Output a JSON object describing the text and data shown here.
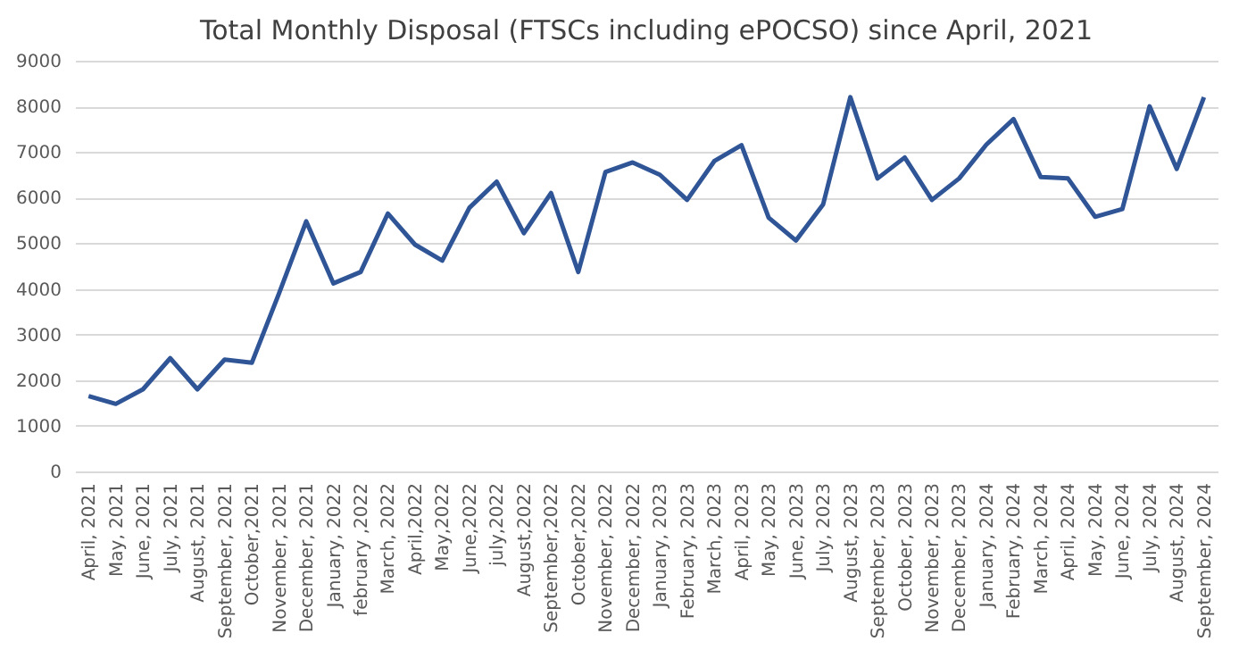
{
  "chart_data": {
    "type": "line",
    "title": "Total Monthly Disposal (FTSCs including ePOCSO) since April, 2021",
    "categories": [
      "April, 2021",
      "May, 2021",
      "June, 2021",
      "July, 2021",
      "August, 2021",
      "September, 2021",
      "October,2021",
      "November, 2021",
      "December, 2021",
      "January, 2022",
      "february ,2022",
      "March, 2022",
      "April,2022",
      "May,2022",
      "June,2022",
      "july,2022",
      "August,2022",
      "September,2022",
      "October,2022",
      "November, 2022",
      "December, 2022",
      "January, 2023",
      "February, 2023",
      "March, 2023",
      "April, 2023",
      "May, 2023",
      "June, 2023",
      "July, 2023",
      "August, 2023",
      "September, 2023",
      "October, 2023",
      "November, 2023",
      "December, 2023",
      "January, 2024",
      "February, 2024",
      "March, 2024",
      "April, 2024",
      "May, 2024",
      "June, 2024",
      "July, 2024",
      "August, 2024",
      "September, 2024"
    ],
    "series": [
      {
        "color": "#2f5597",
        "values": [
          1650,
          1480,
          1800,
          2480,
          1800,
          2450,
          2380,
          3900,
          5480,
          4120,
          4370,
          5650,
          4970,
          4620,
          5780,
          6350,
          5220,
          6100,
          4370,
          6560,
          6770,
          6500,
          5950,
          6800,
          7150,
          5560,
          5060,
          5850,
          8200,
          6420,
          6880,
          5950,
          6420,
          7160,
          7720,
          6450,
          6420,
          5580,
          5750,
          8000,
          6630,
          8200
        ]
      }
    ],
    "ylim": [
      0,
      9000
    ],
    "yticks": [
      0,
      1000,
      2000,
      3000,
      4000,
      5000,
      6000,
      7000,
      8000,
      9000
    ],
    "grid": "y",
    "legend": false,
    "marker": "none",
    "line_style": "solid"
  }
}
